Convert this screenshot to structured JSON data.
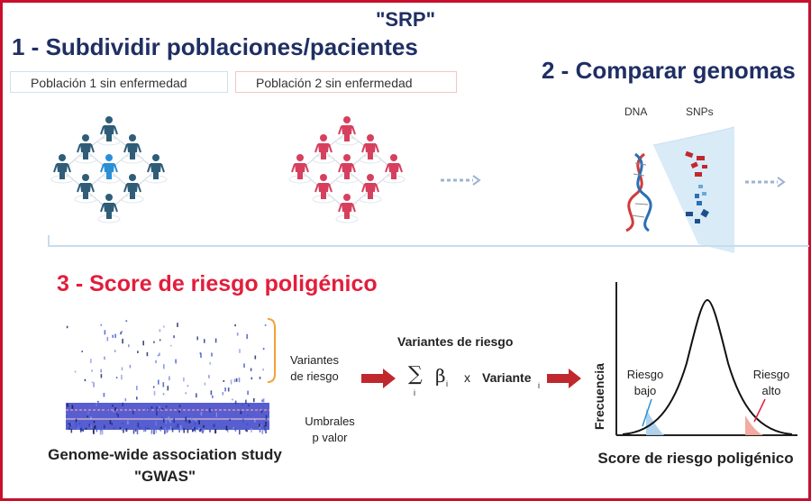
{
  "title": "\"SRP\"",
  "step1": {
    "heading": "1 - Subdividir poblaciones/pacientes",
    "population1": "Población 1 sin enfermedad",
    "population2": "Población 2 sin enfermedad"
  },
  "step2": {
    "heading": "2 - Comparar genomas",
    "dna_label": "DNA",
    "snps_label": "SNPs"
  },
  "step3": {
    "heading": "3 - Score de riesgo poligénico",
    "gwas_caption_line1": "Genome-wide association study",
    "gwas_caption_line2": "\"GWAS\"",
    "variants_label_line1": "Variantes",
    "variants_label_line2": "de riesgo",
    "thresholds_line1": "Umbrales",
    "thresholds_line2": "p valor",
    "formula_title": "Variantes de riesgo",
    "formula_sum": "∑",
    "formula_index": "i",
    "formula_beta": "β",
    "formula_times": "x",
    "formula_variant": "Variante",
    "distribution": {
      "ylabel": "Frecuencia",
      "xlabel": "Score de riesgo poligénico",
      "low_risk_line1": "Riesgo",
      "low_risk_line2": "bajo",
      "high_risk_line1": "Riesgo",
      "high_risk_line2": "alto"
    }
  },
  "colors": {
    "navy": "#1f2f63",
    "red": "#e31d3c",
    "frame": "#c8102e",
    "population1": "#2f5d78",
    "population1_highlight": "#2b8fd6",
    "population2": "#d6405e",
    "arrow_red": "#c0282d",
    "low_risk_fill": "#a8cdea",
    "high_risk_fill": "#f2a79c"
  }
}
